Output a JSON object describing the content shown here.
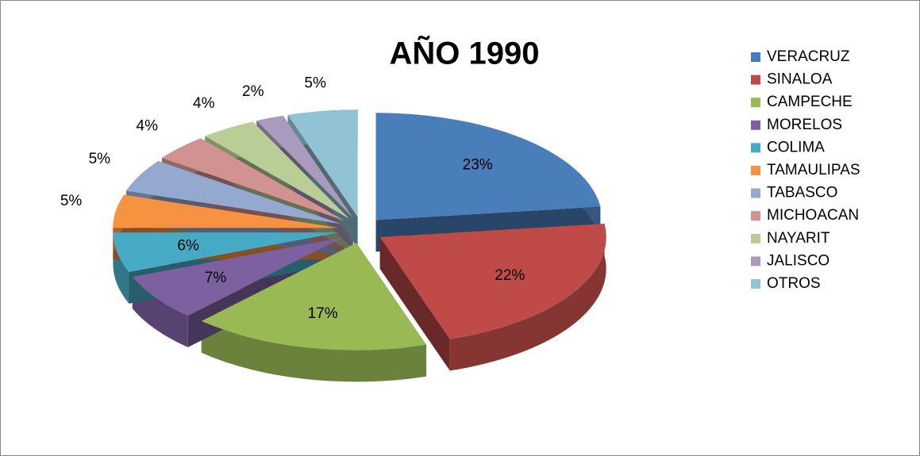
{
  "chart_data": {
    "type": "pie",
    "title": "AÑO 1990",
    "categories": [
      "VERACRUZ",
      "SINALOA",
      "CAMPECHE",
      "MORELOS",
      "COLIMA",
      "TAMAULIPAS",
      "TABASCO",
      "MICHOACAN",
      "NAYARIT",
      "JALISCO",
      "OTROS"
    ],
    "values": [
      23,
      22,
      17,
      7,
      6,
      5,
      5,
      4,
      4,
      2,
      5
    ],
    "value_labels": [
      "23%",
      "22%",
      "17%",
      "7%",
      "6%",
      "5%",
      "5%",
      "4%",
      "4%",
      "2%",
      "5%"
    ],
    "colors": [
      "#4a7ebb",
      "#be4b48",
      "#98b954",
      "#7d60a0",
      "#46aac5",
      "#f69240",
      "#93a9cf",
      "#d19392",
      "#b9cd96",
      "#a99bbd",
      "#91c3d5"
    ],
    "legend": "right"
  }
}
